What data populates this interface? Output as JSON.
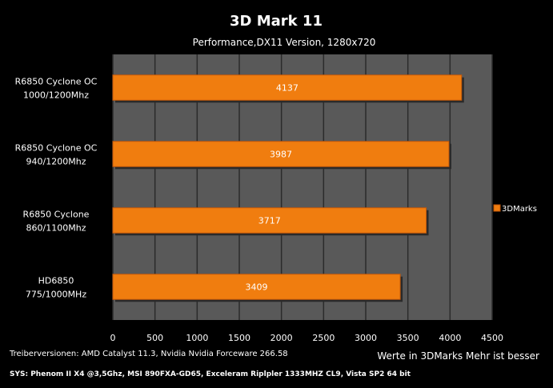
{
  "chart_data": {
    "type": "bar",
    "orientation": "horizontal",
    "title": "3D Mark 11",
    "subtitle": "Performance,DX11 Version, 1280x720",
    "categories": [
      [
        "R6850 Cyclone OC",
        "1000/1200Mhz"
      ],
      [
        "R6850 Cyclone OC",
        "940/1200Mhz"
      ],
      [
        "R6850 Cyclone",
        "860/1100Mhz"
      ],
      [
        "HD6850",
        "775/1000MHz"
      ]
    ],
    "series": [
      {
        "name": "3DMarks",
        "values": [
          4137,
          3987,
          3717,
          3409
        ]
      }
    ],
    "xlim": [
      0,
      4500
    ],
    "xticks": [
      "0",
      "500",
      "1000",
      "1500",
      "2000",
      "2500",
      "3000",
      "3500",
      "4000",
      "4500"
    ],
    "xlabel": "Werte in 3DMarks Mehr ist besser",
    "ylabel": "",
    "grid": true,
    "legend_position": "right",
    "colors": {
      "bar": "#f07d0f",
      "bar_dark": "#c2580a",
      "plot_bg": "#595959",
      "grid": "#2b2b2b",
      "background": "#000000"
    }
  },
  "footer": {
    "driver_note": "Treiberversionen: AMD Catalyst 11.3, Nvidia Nvidia Forceware 266.58",
    "system_note": "SYS: Phenom II X4 @3,5Ghz, MSI 890FXA-GD65, Exceleram Riplpler 1333MHZ CL9, Vista SP2 64 bit"
  }
}
